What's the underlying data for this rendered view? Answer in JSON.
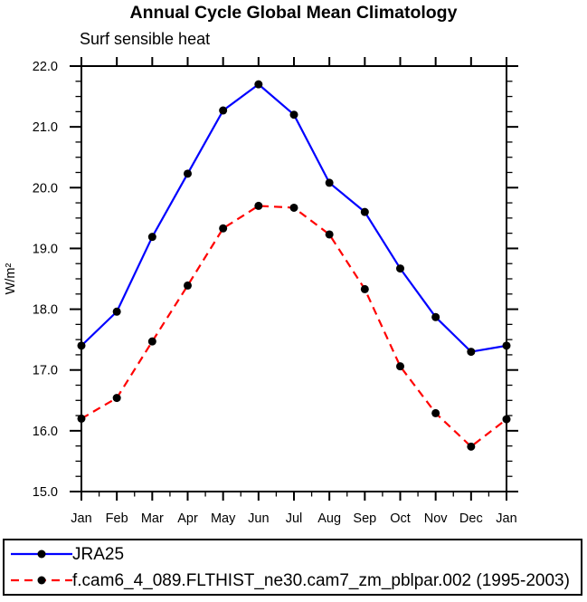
{
  "title": "Annual Cycle Global Mean Climatology",
  "subtitle": "Surf sensible heat",
  "chart_data": {
    "type": "line",
    "categories": [
      "Jan",
      "Feb",
      "Mar",
      "Apr",
      "May",
      "Jun",
      "Jul",
      "Aug",
      "Sep",
      "Oct",
      "Nov",
      "Dec",
      "Jan"
    ],
    "series": [
      {
        "name": "JRA25",
        "color": "#0000ff",
        "line_style": "solid",
        "marker": "circle",
        "marker_color": "#000000",
        "values": [
          17.4,
          17.96,
          19.19,
          20.23,
          21.27,
          21.7,
          21.2,
          20.08,
          19.6,
          18.67,
          17.87,
          17.3,
          17.4
        ]
      },
      {
        "name": "f.cam6_4_089.FLTHIST_ne30.cam7_zm_pblpar.002 (1995-2003)",
        "color": "#ff0000",
        "line_style": "dashed",
        "marker": "circle",
        "marker_color": "#000000",
        "values": [
          16.2,
          16.54,
          17.47,
          18.39,
          19.33,
          19.7,
          19.67,
          19.23,
          18.33,
          17.06,
          16.29,
          15.74,
          16.19
        ]
      }
    ],
    "xlabel": "",
    "ylabel": "W/m²",
    "ylim": [
      15.0,
      22.0
    ],
    "y_major_step": 1.0,
    "y_minor_step": 0.25,
    "y_tick_labels": [
      "15.0",
      "16.0",
      "17.0",
      "18.0",
      "19.0",
      "20.0",
      "21.0",
      "22.0"
    ],
    "x_minor_per_interval": 1,
    "grid": false,
    "legend_position": "bottom",
    "axis_color": "#000000"
  }
}
